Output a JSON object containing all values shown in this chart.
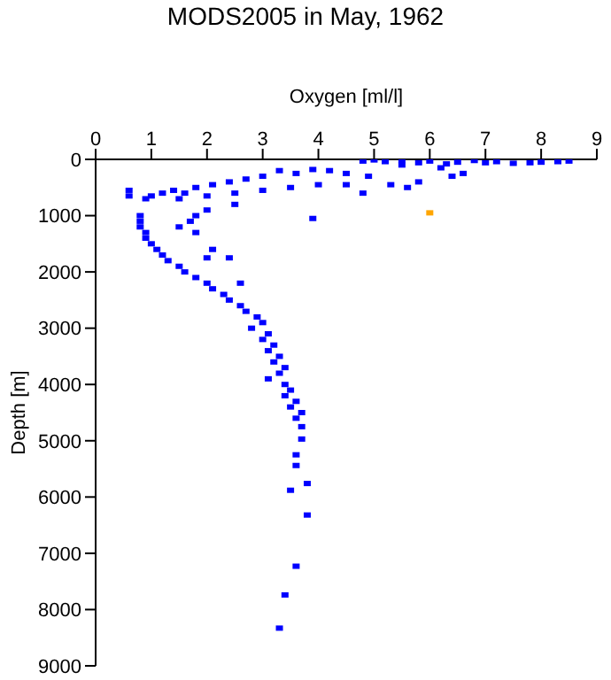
{
  "chart_data": {
    "type": "scatter",
    "title": "MODS2005 in May, 1962",
    "xlabel": "Oxygen [ml/l]",
    "ylabel": "Depth [m]",
    "xlim": [
      0,
      9
    ],
    "xticks": [
      0,
      1,
      2,
      3,
      4,
      5,
      6,
      7,
      8,
      9
    ],
    "ylim": [
      9000,
      0
    ],
    "yticks": [
      0,
      1000,
      2000,
      3000,
      4000,
      5000,
      6000,
      7000,
      8000,
      9000
    ],
    "grid": false,
    "legend": false,
    "marker": "square",
    "series": [
      {
        "color": "#0000ff",
        "x": [
          8.5,
          8.3,
          8.0,
          7.8,
          7.5,
          7.2,
          7.0,
          6.8,
          6.5,
          6.3,
          6.0,
          5.8,
          5.5,
          5.2,
          5.0,
          4.8,
          5.5,
          6.2,
          6.6,
          6.4,
          5.8,
          5.6,
          5.3,
          4.9,
          4.5,
          4.2,
          3.9,
          3.6,
          3.3,
          3.0,
          2.7,
          2.4,
          2.1,
          1.8,
          1.6,
          1.4,
          1.2,
          0.9,
          0.6,
          0.6,
          1.0,
          1.5,
          2.0,
          2.5,
          3.0,
          3.5,
          4.0,
          4.5,
          4.8,
          3.9,
          2.5,
          2.0,
          1.8,
          1.7,
          1.5,
          1.8,
          0.8,
          0.8,
          0.8,
          0.9,
          0.9,
          1.0,
          1.1,
          1.2,
          1.3,
          1.5,
          1.6,
          1.8,
          2.0,
          2.1,
          2.3,
          2.4,
          2.6,
          2.7,
          2.9,
          3.0,
          2.8,
          3.1,
          3.0,
          3.2,
          3.1,
          3.3,
          3.2,
          3.4,
          3.3,
          3.1,
          3.4,
          3.5,
          3.4,
          3.6,
          3.5,
          3.7,
          3.6,
          3.7,
          3.7,
          3.6,
          3.6,
          3.8,
          3.5,
          3.8,
          3.6,
          3.4,
          3.3,
          2.1,
          2.0,
          2.4,
          2.6
        ],
        "values": [
          30,
          40,
          50,
          60,
          70,
          40,
          60,
          20,
          50,
          80,
          30,
          60,
          20,
          40,
          10,
          30,
          100,
          150,
          250,
          300,
          400,
          500,
          450,
          300,
          250,
          200,
          180,
          250,
          200,
          300,
          350,
          400,
          450,
          500,
          600,
          550,
          600,
          700,
          550,
          650,
          650,
          700,
          650,
          600,
          550,
          500,
          450,
          450,
          600,
          1050,
          800,
          900,
          1000,
          1100,
          1200,
          1300,
          1000,
          1100,
          1200,
          1300,
          1400,
          1500,
          1600,
          1700,
          1800,
          1900,
          2000,
          2100,
          2200,
          2300,
          2400,
          2500,
          2600,
          2700,
          2800,
          2900,
          3000,
          3100,
          3200,
          3300,
          3400,
          3500,
          3600,
          3700,
          3800,
          3900,
          4000,
          4100,
          4200,
          4300,
          4400,
          4500,
          4600,
          4750,
          4970,
          5250,
          5440,
          5760,
          5880,
          6320,
          7230,
          7740,
          8330,
          1600,
          1750,
          1750,
          2200
        ]
      },
      {
        "color": "#ffa500",
        "x": [
          6.0
        ],
        "values": [
          950
        ]
      }
    ]
  }
}
